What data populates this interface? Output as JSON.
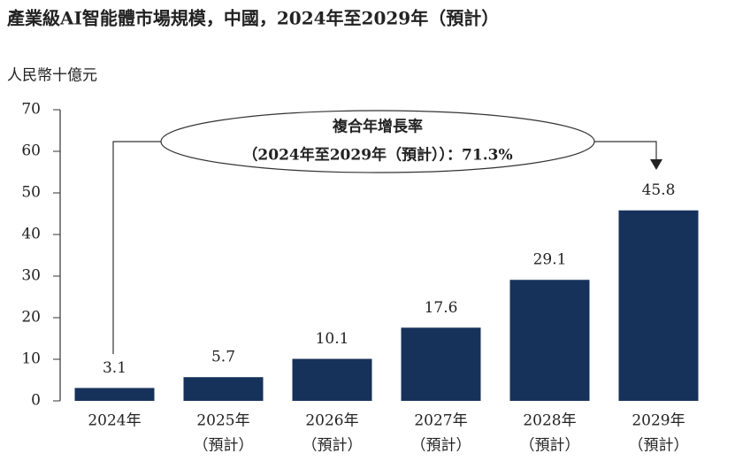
{
  "chart_data": {
    "type": "bar",
    "title": "產業級AI智能體市場規模，中國，2024年至2029年（預計）",
    "y_label": "人民幣十億元",
    "categories": [
      [
        "2024年"
      ],
      [
        "2025年",
        "（預計）"
      ],
      [
        "2026年",
        "（預計）"
      ],
      [
        "2027年",
        "（預計）"
      ],
      [
        "2028年",
        "（預計）"
      ],
      [
        "2029年",
        "（預計）"
      ]
    ],
    "values": [
      3.1,
      5.7,
      10.1,
      17.6,
      29.1,
      45.8
    ],
    "color": "#17325a",
    "ylim": [
      0,
      70
    ],
    "yticks": [
      0,
      10,
      20,
      30,
      40,
      50,
      60,
      70
    ],
    "grid": false,
    "annotation": [
      "複合年增長率",
      "（2024年至2029年（預計））：71.3%"
    ]
  }
}
